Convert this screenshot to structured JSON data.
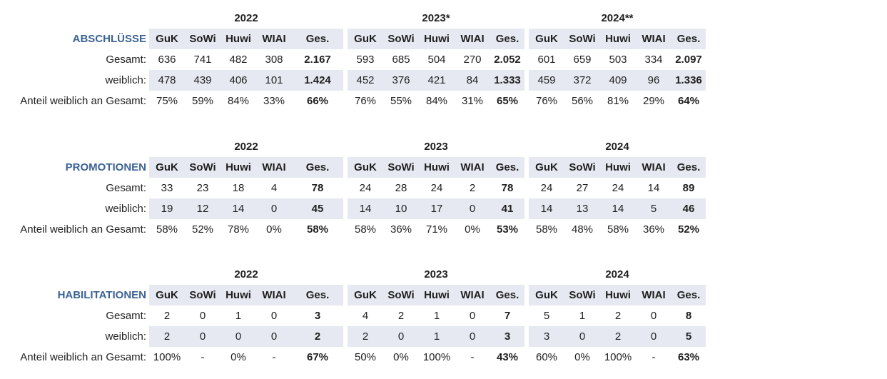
{
  "colors": {
    "band_background": "#E7E9F2",
    "section_label_blue": "#3B6394",
    "text": "#1f1f1f",
    "page_background": "#ffffff"
  },
  "columns": [
    "GuK",
    "SoWi",
    "Huwi",
    "WIAI",
    "Ges."
  ],
  "row_labels": {
    "total": "Gesamt:",
    "female": "weiblich:",
    "share": "Anteil weiblich an Gesamt:"
  },
  "sections": [
    {
      "label": "ABSCHLÜSSE",
      "years": [
        {
          "year": "2022",
          "total": [
            "636",
            "741",
            "482",
            "308",
            "2.167"
          ],
          "female": [
            "478",
            "439",
            "406",
            "101",
            "1.424"
          ],
          "share": [
            "75%",
            "59%",
            "84%",
            "33%",
            "66%"
          ]
        },
        {
          "year": "2023*",
          "total": [
            "593",
            "685",
            "504",
            "270",
            "2.052"
          ],
          "female": [
            "452",
            "376",
            "421",
            "84",
            "1.333"
          ],
          "share": [
            "76%",
            "55%",
            "84%",
            "31%",
            "65%"
          ]
        },
        {
          "year": "2024**",
          "total": [
            "601",
            "659",
            "503",
            "334",
            "2.097"
          ],
          "female": [
            "459",
            "372",
            "409",
            "96",
            "1.336"
          ],
          "share": [
            "76%",
            "56%",
            "81%",
            "29%",
            "64%"
          ]
        }
      ]
    },
    {
      "label": "PROMOTIONEN",
      "years": [
        {
          "year": "2022",
          "total": [
            "33",
            "23",
            "18",
            "4",
            "78"
          ],
          "female": [
            "19",
            "12",
            "14",
            "0",
            "45"
          ],
          "share": [
            "58%",
            "52%",
            "78%",
            "0%",
            "58%"
          ]
        },
        {
          "year": "2023",
          "total": [
            "24",
            "28",
            "24",
            "2",
            "78"
          ],
          "female": [
            "14",
            "10",
            "17",
            "0",
            "41"
          ],
          "share": [
            "58%",
            "36%",
            "71%",
            "0%",
            "53%"
          ]
        },
        {
          "year": "2024",
          "total": [
            "24",
            "27",
            "24",
            "14",
            "89"
          ],
          "female": [
            "14",
            "13",
            "14",
            "5",
            "46"
          ],
          "share": [
            "58%",
            "48%",
            "58%",
            "36%",
            "52%"
          ]
        }
      ]
    },
    {
      "label": "HABILITATIONEN",
      "years": [
        {
          "year": "2022",
          "total": [
            "2",
            "0",
            "1",
            "0",
            "3"
          ],
          "female": [
            "2",
            "0",
            "0",
            "0",
            "2"
          ],
          "share": [
            "100%",
            "-",
            "0%",
            "-",
            "67%"
          ]
        },
        {
          "year": "2023",
          "total": [
            "4",
            "2",
            "1",
            "0",
            "7"
          ],
          "female": [
            "2",
            "0",
            "1",
            "0",
            "3"
          ],
          "share": [
            "50%",
            "0%",
            "100%",
            "-",
            "43%"
          ]
        },
        {
          "year": "2024",
          "total": [
            "5",
            "1",
            "2",
            "0",
            "8"
          ],
          "female": [
            "3",
            "0",
            "2",
            "0",
            "5"
          ],
          "share": [
            "60%",
            "0%",
            "100%",
            "-",
            "63%"
          ]
        }
      ]
    }
  ]
}
